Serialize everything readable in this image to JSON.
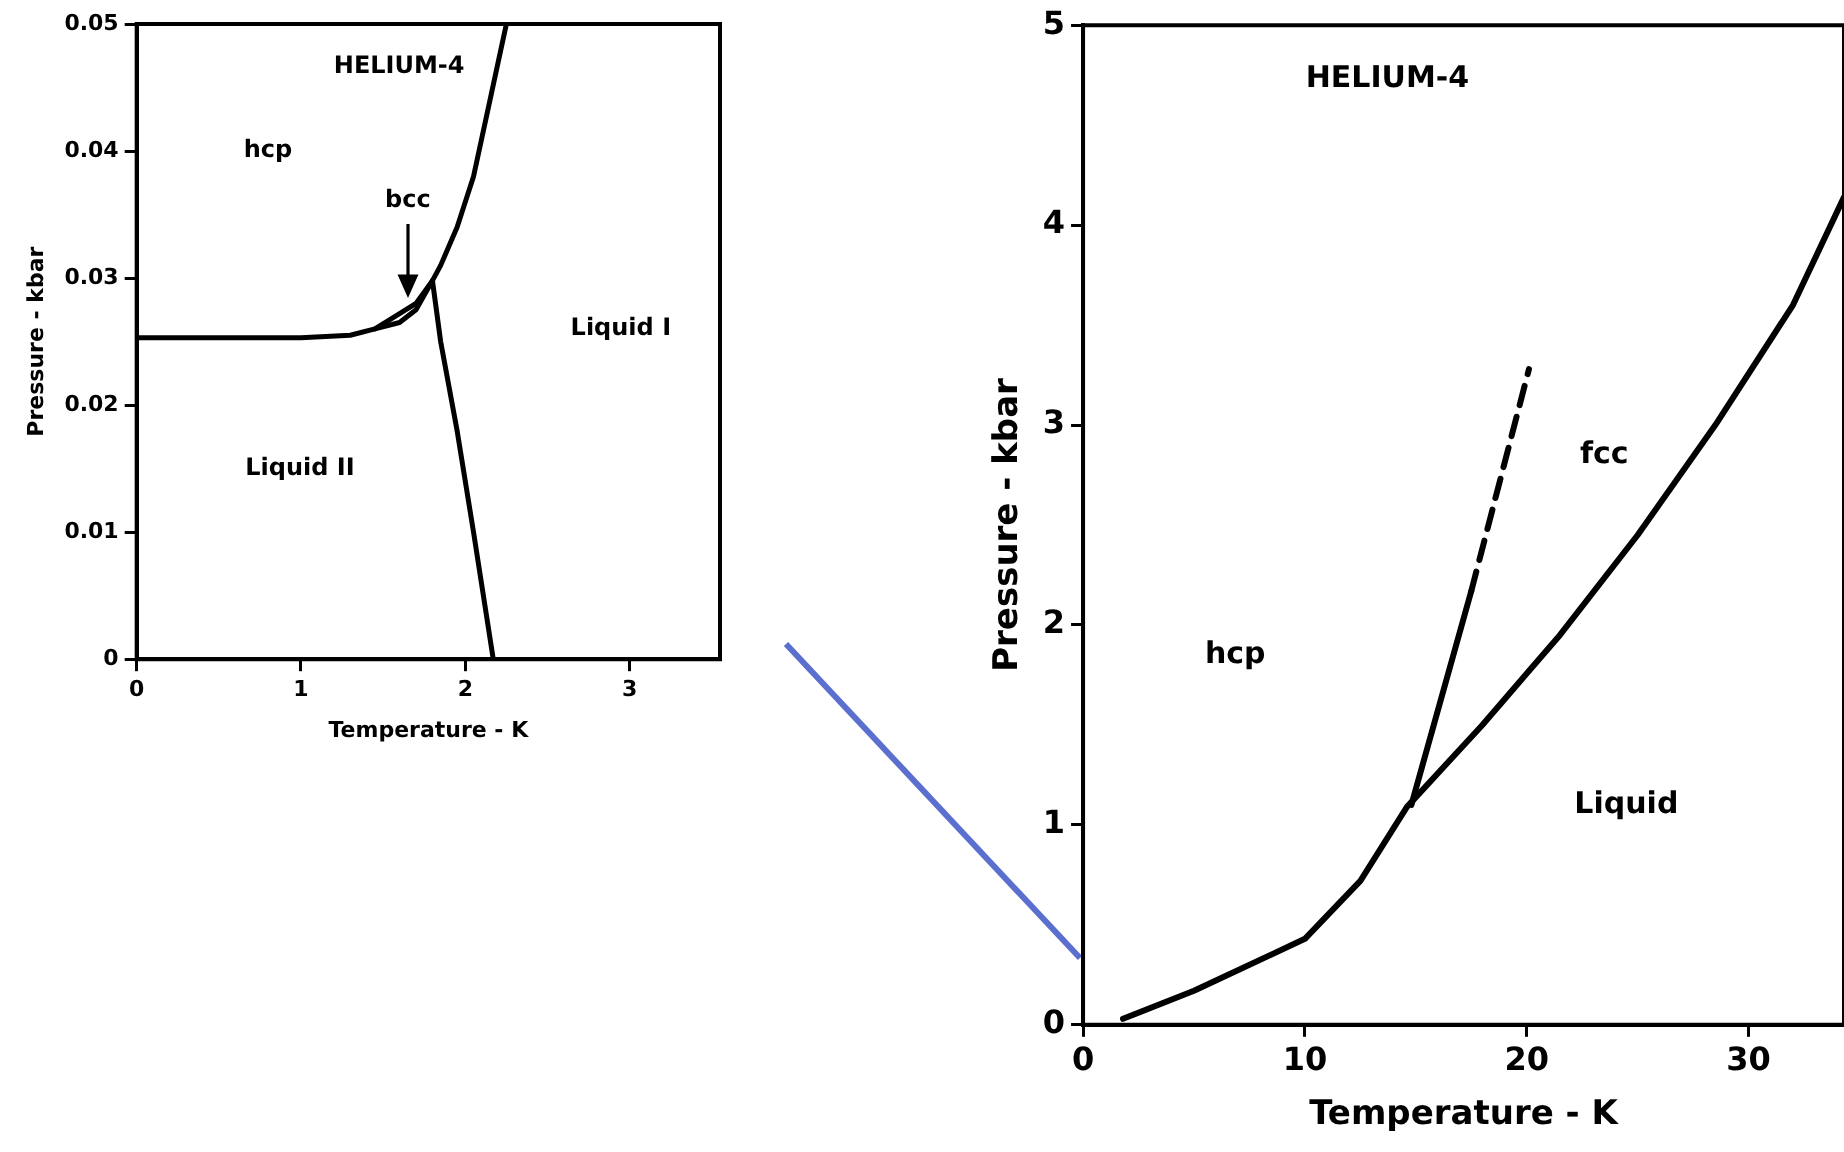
{
  "chart_data": [
    {
      "type": "line",
      "title": "HELIUM-4",
      "xlabel": "Temperature - K",
      "ylabel": "Pressure - kbar",
      "xlim": [
        0,
        3.55
      ],
      "ylim": [
        0,
        0.05
      ],
      "xticks": [
        0,
        1,
        2,
        3
      ],
      "yticks": [
        0,
        0.01,
        0.02,
        0.03,
        0.04,
        0.05
      ],
      "grid": false,
      "legend": false,
      "marker": "none",
      "line_style": "solid",
      "series": [
        {
          "color": "#000000",
          "x": [
            0,
            0.5,
            1,
            1.3,
            1.45,
            1.6,
            1.7,
            1.8,
            1.85,
            1.95,
            2.05,
            2.15,
            2.25
          ],
          "values": [
            0.0253,
            0.0253,
            0.0253,
            0.0255,
            0.026,
            0.0272,
            0.028,
            0.0298,
            0.031,
            0.034,
            0.038,
            0.044,
            0.05
          ]
        },
        {
          "color": "#000000",
          "x": [
            1.45,
            1.6,
            1.7,
            1.8
          ],
          "values": [
            0.026,
            0.0265,
            0.0275,
            0.0298
          ]
        },
        {
          "color": "#000000",
          "x": [
            1.8,
            1.85,
            1.95,
            2.05,
            2.17
          ],
          "values": [
            0.0298,
            0.025,
            0.018,
            0.01,
            0
          ]
        }
      ],
      "annotations": [
        "hcp",
        {
          "text": "bcc",
          "x": 1.65,
          "y": 0.0285
        },
        "Liquid II",
        "Liquid I"
      ]
    },
    {
      "type": "line",
      "title": "HELIUM-4",
      "xlabel": "Temperature - K",
      "ylabel": "Pressure - kbar",
      "xlim": [
        0,
        34.3
      ],
      "ylim": [
        0,
        5
      ],
      "xticks": [
        0,
        10,
        20,
        30
      ],
      "yticks": [
        0,
        1,
        2,
        3,
        4,
        5
      ],
      "grid": false,
      "legend": false,
      "marker": "none",
      "line_style": "solid",
      "series": [
        {
          "color": "#000000",
          "x": [
            1.8,
            5,
            10,
            12.5,
            14.6,
            18,
            21.5,
            25,
            28.5,
            32,
            34.3
          ],
          "values": [
            0.03,
            0.17,
            0.43,
            0.72,
            1.09,
            1.5,
            1.95,
            2.45,
            3.0,
            3.6,
            4.14
          ]
        },
        {
          "color": "#000000",
          "x": [
            14.8,
            17.5
          ],
          "values": [
            1.1,
            2.17
          ]
        },
        {
          "color": "#000000",
          "line_style": "dashed",
          "x": [
            17.5,
            20.1
          ],
          "values": [
            2.17,
            3.28
          ]
        }
      ],
      "annotations": [
        "hcp",
        "fcc",
        "Liquid"
      ]
    }
  ]
}
